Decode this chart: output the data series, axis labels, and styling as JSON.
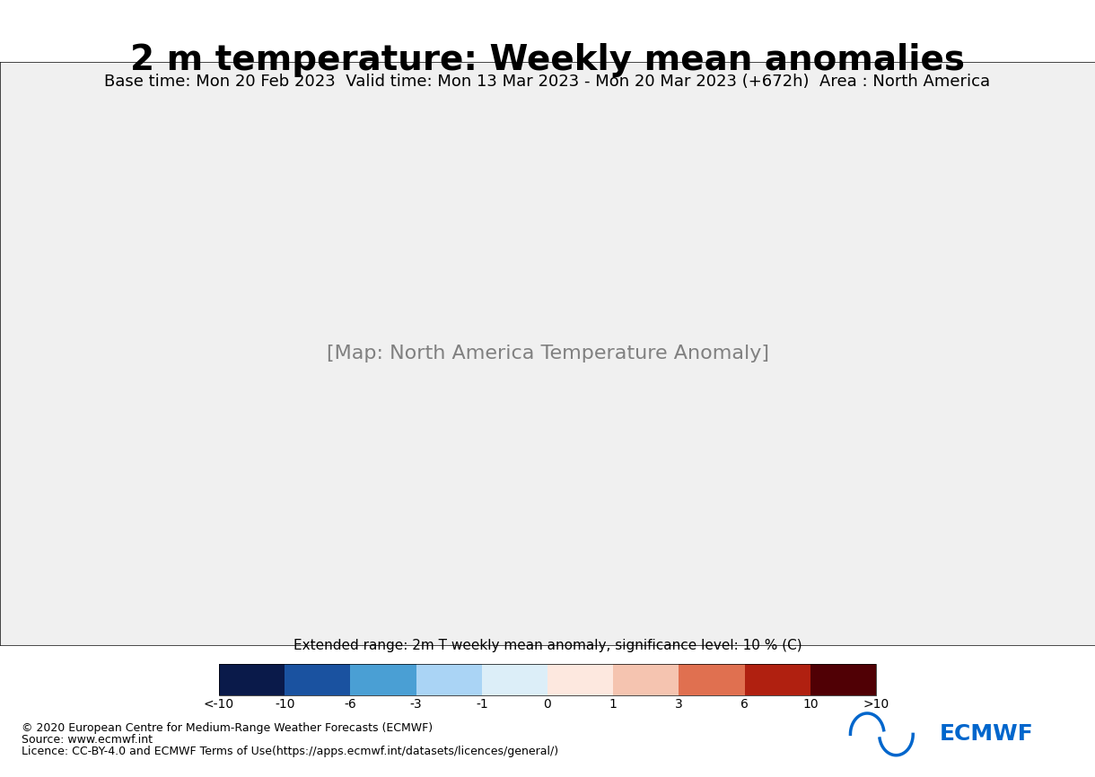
{
  "title": "2 m temperature: Weekly mean anomalies",
  "subtitle": "Base time: Mon 20 Feb 2023  Valid time: Mon 13 Mar 2023 - Mon 20 Mar 2023 (+672h)  Area : North America",
  "colorbar_label": "Extended range: 2m T weekly mean anomaly, significance level: 10 % (C)",
  "colorbar_ticks": [
    "<-10",
    "-10",
    "-6",
    "-3",
    "-1",
    "0",
    "1",
    "3",
    "6",
    "10",
    ">10"
  ],
  "colorbar_colors": [
    "#0a1a4a",
    "#1a52a0",
    "#4a9fd4",
    "#aad4f5",
    "#ffffff",
    "#f5c4b0",
    "#e07050",
    "#b02010",
    "#500005"
  ],
  "background_color": "#ffffff",
  "map_background": "#ffffff",
  "footer_line1": "© 2020 European Centre for Medium-Range Weather Forecasts (ECMWF)",
  "footer_line2": "Source: www.ecmwf.int",
  "footer_line3": "Licence: CC-BY-4.0 and ECMWF Terms of Use(https://apps.ecmwf.int/datasets/licences/general/)",
  "title_fontsize": 28,
  "subtitle_fontsize": 13,
  "footer_fontsize": 9,
  "ecmwf_logo_color": "#0066cc"
}
